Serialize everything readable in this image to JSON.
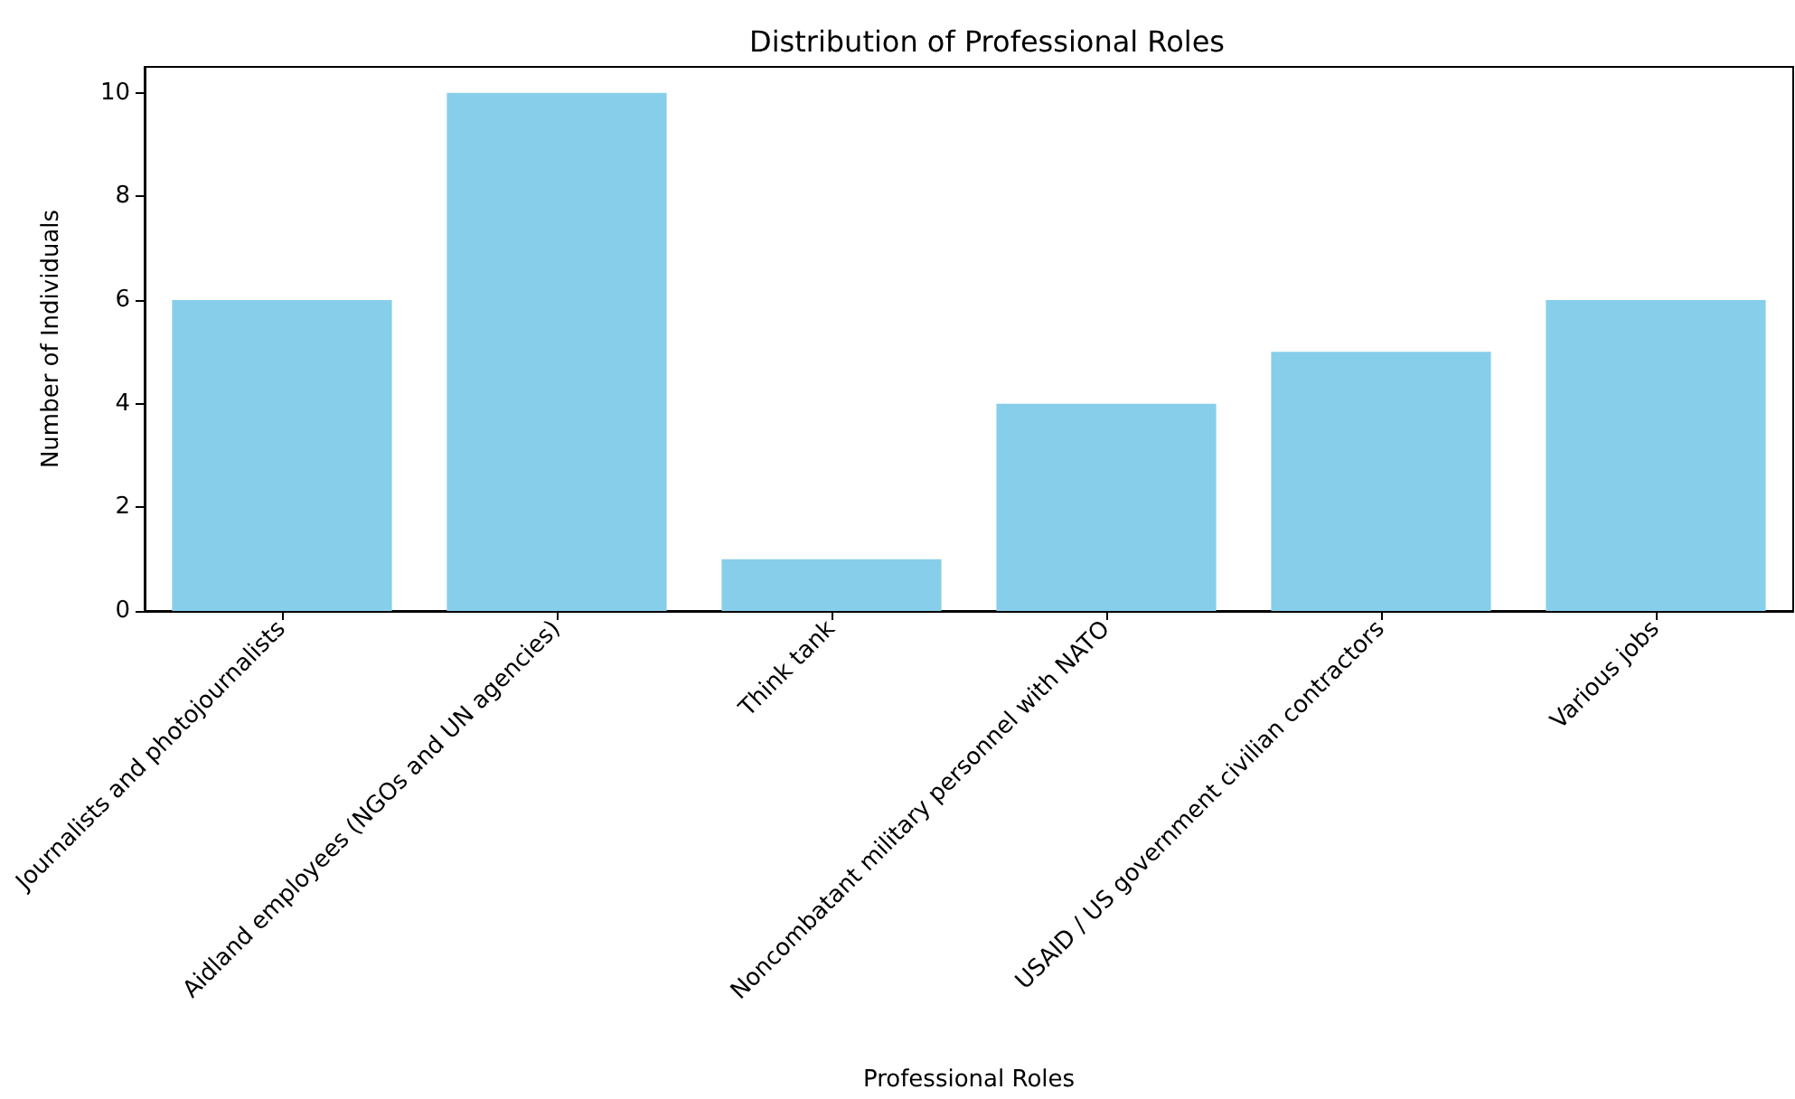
{
  "chart_data": {
    "type": "bar",
    "title": "Distribution of Professional Roles",
    "xlabel": "Professional Roles",
    "ylabel": "Number of Individuals",
    "categories": [
      "Journalists and photojournalists",
      "Aidland employees (NGOs and UN agencies)",
      "Think tank",
      "Noncombatant military personnel with NATO",
      "USAID / US government civilian contractors",
      "Various jobs"
    ],
    "values": [
      6,
      10,
      1,
      4,
      5,
      6
    ],
    "color": "#87ceeb",
    "ylim": [
      0,
      10.5
    ],
    "yticks": [
      0,
      2,
      4,
      6,
      8,
      10
    ],
    "grid": false
  }
}
